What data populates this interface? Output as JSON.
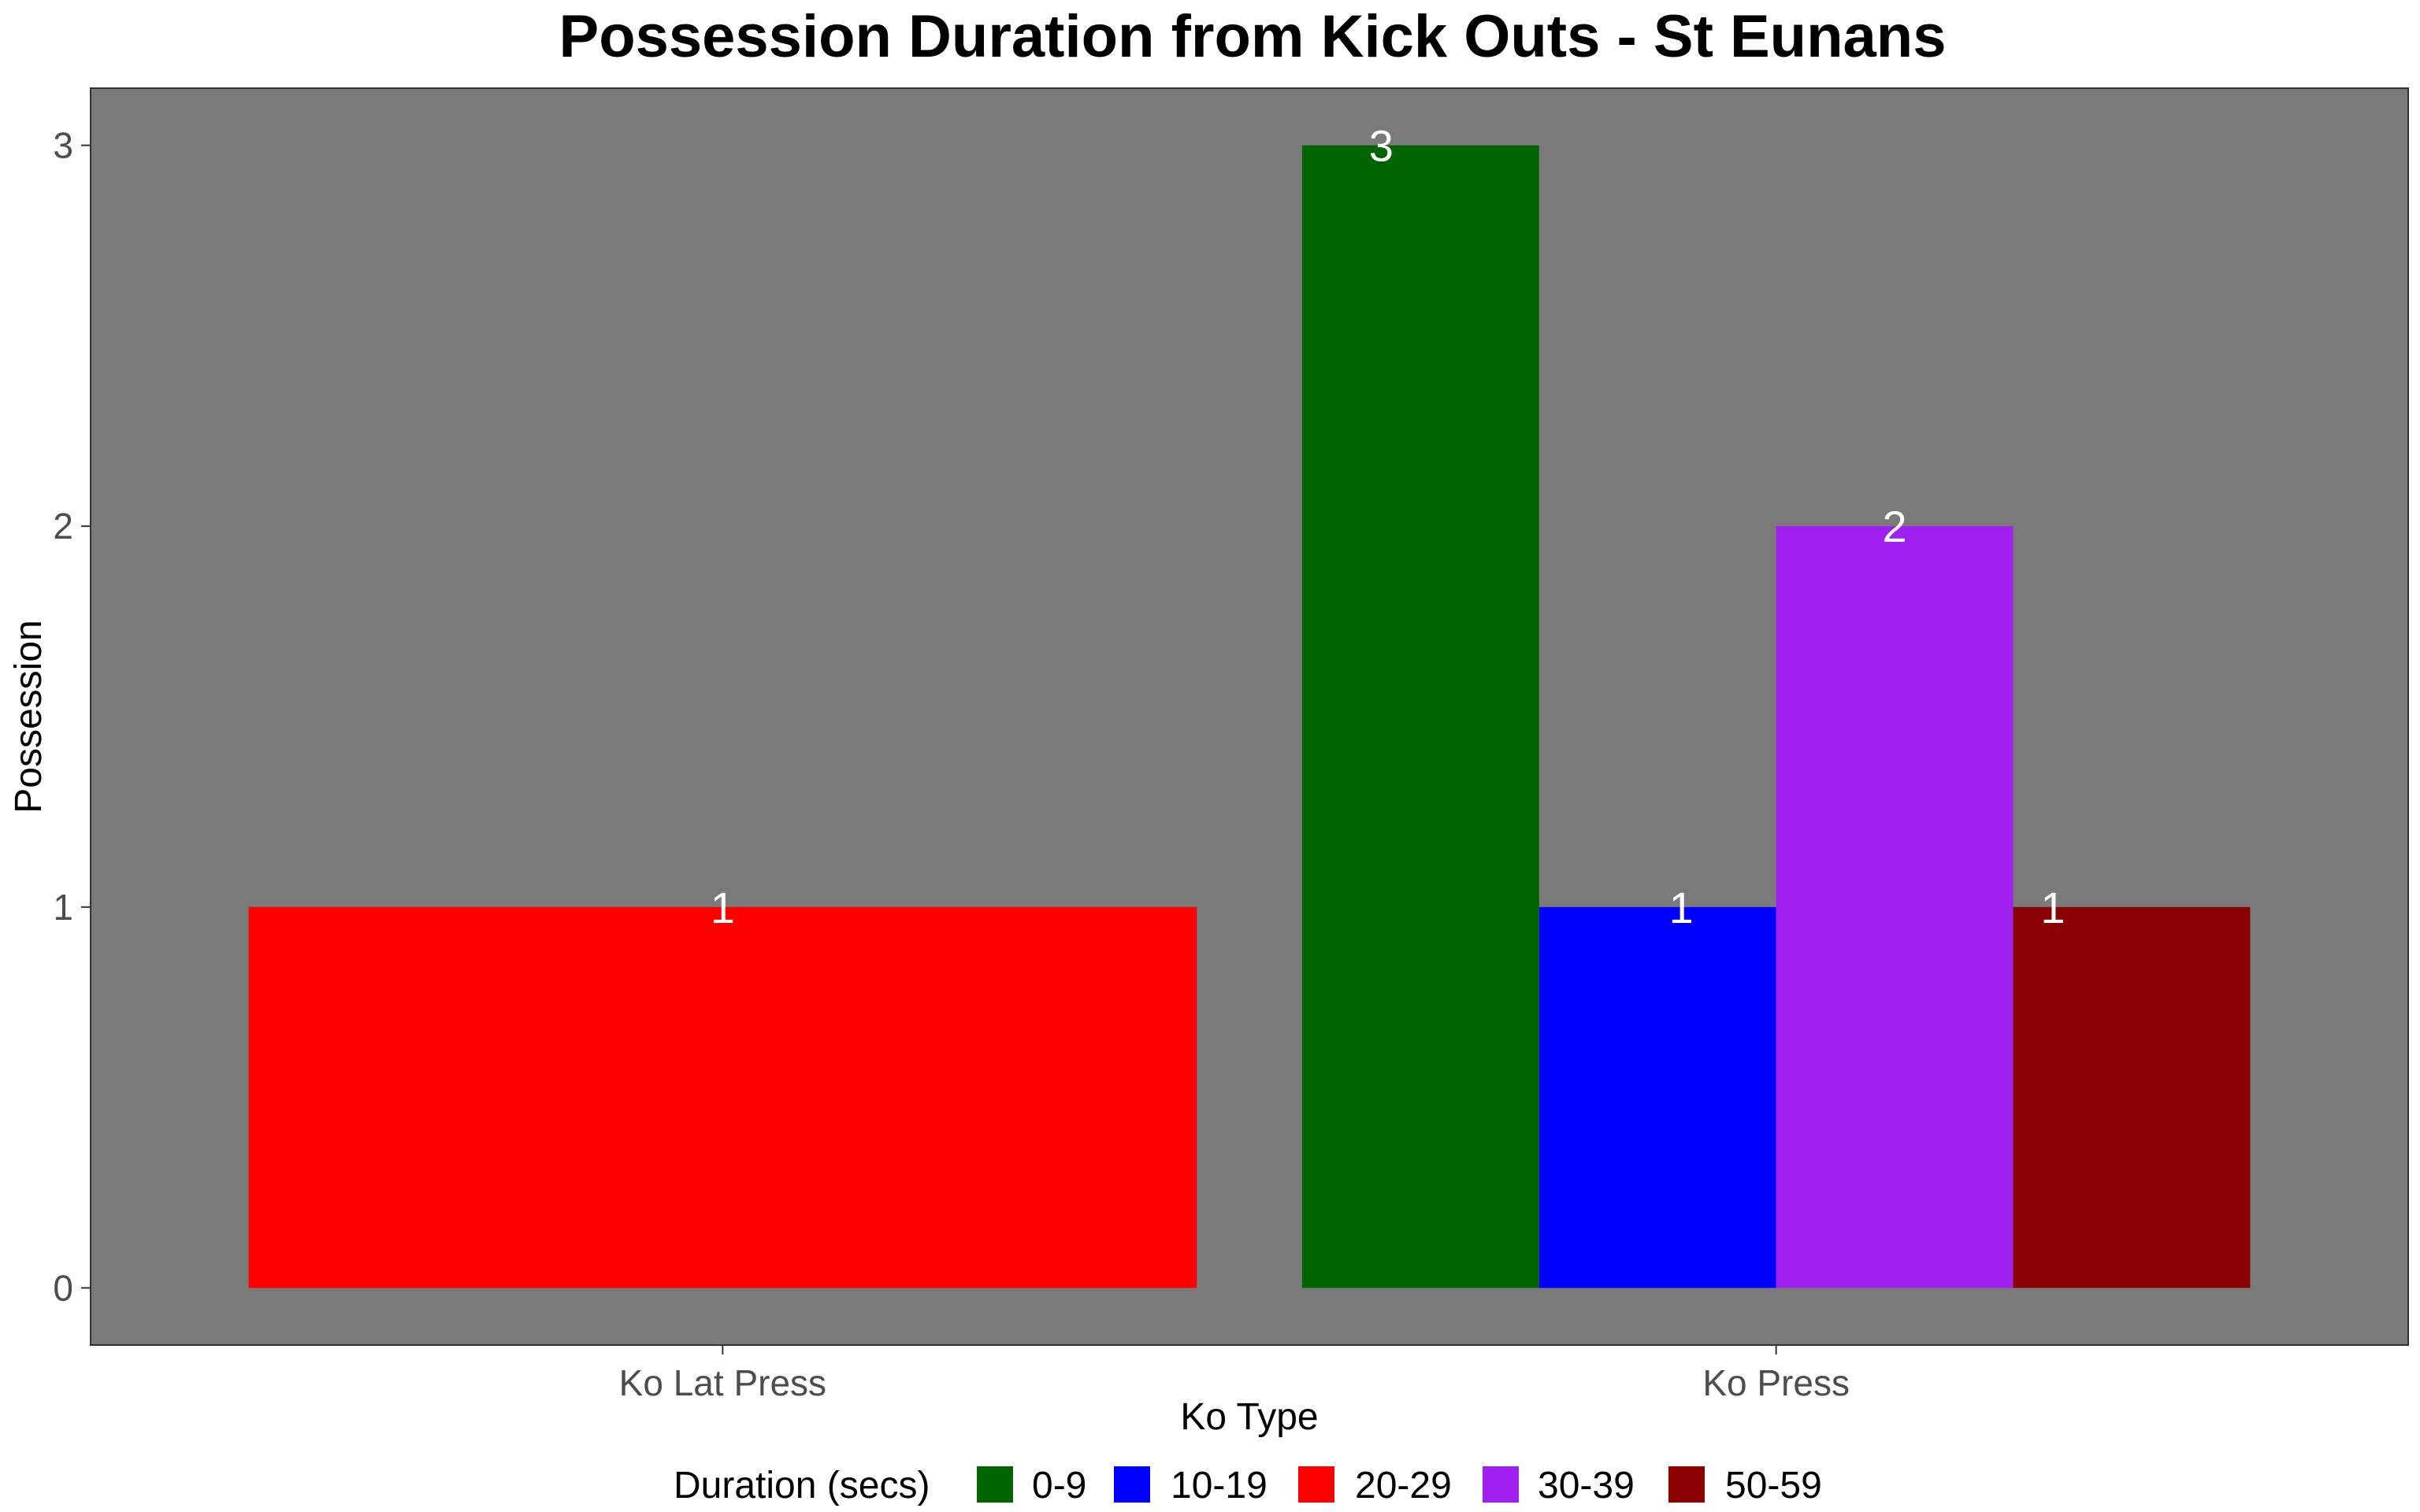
{
  "chart_data": {
    "type": "bar",
    "title": "Possession Duration from Kick Outs - St Eunans",
    "xlabel": "Ko Type",
    "ylabel": "Possession",
    "categories": [
      "Ko Lat Press",
      "Ko Press"
    ],
    "y_ticks": [
      "0",
      "1",
      "2",
      "3"
    ],
    "ylim": [
      -0.15,
      3.15
    ],
    "legend": {
      "title": "Duration (secs)",
      "placement": "bottom",
      "entries": [
        {
          "label": "0-9",
          "color": "#006400"
        },
        {
          "label": "10-19",
          "color": "#0000ff"
        },
        {
          "label": "20-29",
          "color": "#ff0000"
        },
        {
          "label": "30-39",
          "color": "#a020f0"
        },
        {
          "label": "50-59",
          "color": "#8b0000"
        }
      ]
    },
    "bars": [
      {
        "category": "Ko Lat Press",
        "group": "20-29",
        "value": 1,
        "label": "1"
      },
      {
        "category": "Ko Press",
        "group": "0-9",
        "value": 3,
        "label": "3"
      },
      {
        "category": "Ko Press",
        "group": "10-19",
        "value": 1,
        "label": "1"
      },
      {
        "category": "Ko Press",
        "group": "30-39",
        "value": 2,
        "label": "2"
      },
      {
        "category": "Ko Press",
        "group": "50-59",
        "value": 1,
        "label": "1"
      }
    ],
    "panel_background": "#7a7a7a",
    "grid": false
  }
}
